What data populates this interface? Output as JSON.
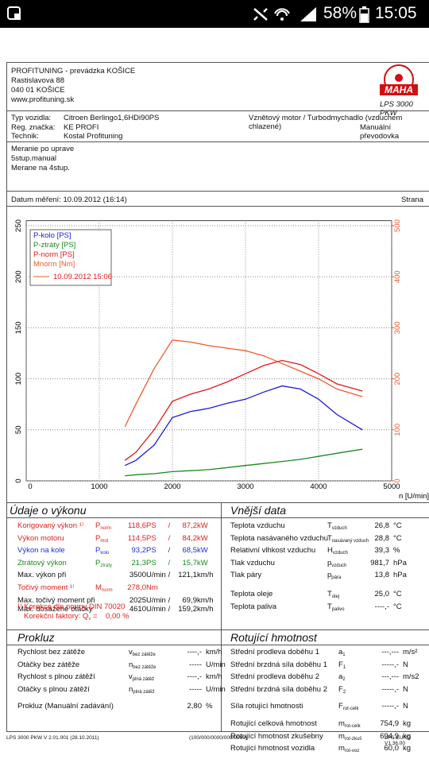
{
  "status_bar": {
    "battery": "58%",
    "time": "15:05"
  },
  "header": {
    "company": [
      "PROFITUNING - prevádzka KOŠICE",
      "Rastislavova 88",
      "040 01 KOŠICE",
      "www.profituning.sk"
    ],
    "logo": "MAHA",
    "product": "LPS 3000 PKW"
  },
  "vehicle": {
    "rows": [
      [
        "Typ vozidla:",
        "Citroen Berlingo1,6HDi90PS"
      ],
      [
        "Reg. značka:",
        "KE PROFI"
      ],
      [
        "Technik:",
        "Kostal Profituning"
      ]
    ],
    "engine": "Vznětový motor / Turbodmychadlo (vzduchem chlazené)",
    "gearbox": "Manuální převodovka"
  },
  "notes": [
    "Meranie po uprave",
    "5stup.manual",
    "Merane na 4stup."
  ],
  "measurement": {
    "date": "Datum měření: 10.09.2012 (16:14)",
    "page": "Strana"
  },
  "chart_data": {
    "type": "line",
    "x": [
      1350,
      1500,
      1750,
      2000,
      2250,
      2500,
      2750,
      3000,
      3250,
      3500,
      3750,
      4000,
      4250,
      4600
    ],
    "series": [
      {
        "name": "P-kolo [PS]",
        "color": "#1a1ad8",
        "values": [
          15,
          20,
          35,
          62,
          68,
          71,
          76,
          80,
          87,
          93,
          90,
          80,
          65,
          50
        ]
      },
      {
        "name": "P-ztráty [PS]",
        "color": "#1a8a1a",
        "values": [
          5,
          6,
          7,
          9,
          10,
          11,
          13,
          15,
          17,
          19,
          21,
          24,
          27,
          31
        ]
      },
      {
        "name": "P-norm [PS]",
        "color": "#e01818",
        "values": [
          20,
          28,
          50,
          78,
          85,
          90,
          97,
          105,
          113,
          118,
          114,
          105,
          95,
          88
        ]
      },
      {
        "name": "Mnorm [Nm]",
        "color": "#f05a28",
        "axis": "y2",
        "values": [
          106,
          150,
          220,
          276,
          272,
          265,
          260,
          255,
          245,
          230,
          215,
          200,
          180,
          165
        ]
      }
    ],
    "legend_note": "10.09.2012 15:06",
    "xlabel": "n [U/min]",
    "xlim": [
      0,
      5000
    ],
    "xticks": [
      0,
      1000,
      2000,
      3000,
      4000,
      5000
    ],
    "ylim": [
      0,
      255
    ],
    "yticks": [
      0,
      50,
      100,
      150,
      200,
      250
    ],
    "y2lim": [
      0,
      510
    ],
    "y2ticks": [
      0,
      100,
      200,
      300,
      400,
      500
    ],
    "grid": true
  },
  "performance": {
    "title": "Údaje o výkonu",
    "rows": [
      [
        "Korigovaný výkon ¹⁾",
        [
          "P",
          "norm"
        ],
        "118,6",
        "PS",
        "/",
        "87,2",
        "kW"
      ],
      [
        "Výkon motoru",
        [
          "P",
          "mot"
        ],
        "114,5",
        "PS",
        "/",
        "84,2",
        "kW"
      ],
      [
        "Výkon na kole",
        [
          "P",
          "kolo"
        ],
        "93,2",
        "PS",
        "/",
        "68,5",
        "kW"
      ],
      [
        "Ztrátový výkon",
        [
          "P",
          "ztráty"
        ],
        "21,3",
        "PS",
        "/",
        "15,7",
        "kW"
      ],
      [
        "Max. výkon při",
        null,
        "3500",
        "U/min",
        "/",
        "121,1",
        "km/h"
      ],
      [
        "Točivý moment ¹⁾",
        [
          "M",
          "norm"
        ],
        "278,0",
        "Nm"
      ],
      [
        "Max. točivý moment při",
        null,
        "2025",
        "U/min",
        "/",
        "69,9",
        "km/h"
      ],
      [
        "Max. dosažené otáčky",
        null,
        "4610",
        "U/min",
        "/",
        "159,2",
        "km/h"
      ]
    ],
    "row_colors": [
      "#e0201a",
      "#e0201a",
      "#1f2fd8",
      "#1a8a1a",
      null,
      "#e0201a",
      null,
      null
    ],
    "note": "¹⁾ Korekce dle normy DIN 70020",
    "factors": [
      "Korekční faktory: Q",
      "v",
      " =    0,00 %"
    ]
  },
  "external": {
    "title": "Vnější data",
    "rows": [
      [
        "Teplota vzduchu",
        [
          "T",
          "vzduch"
        ],
        "26,8",
        "°C"
      ],
      [
        "Teplota nasávaného vzduchu",
        [
          "T",
          "nasávaný vzduch"
        ],
        "28,8",
        "°C"
      ],
      [
        "Relativní vlhkost vzduchu",
        [
          "H",
          "vzduch"
        ],
        "39,3",
        "%"
      ],
      [
        "Tlak vzduchu",
        [
          "p",
          "vzduch"
        ],
        "981,7",
        "hPa"
      ],
      [
        "Tlak páry",
        [
          "p",
          "pára"
        ],
        "13,8",
        "hPa"
      ],
      [
        "Teplota oleje",
        [
          "T",
          "olej"
        ],
        "25,0",
        "°C"
      ],
      [
        "Teplota paliva",
        [
          "T",
          "palivo"
        ],
        "----,-",
        "°C"
      ]
    ]
  },
  "slip": {
    "title": "Prokluz",
    "rows": [
      [
        "Rychlost bez zátěže",
        [
          "v",
          "bez zátěže"
        ],
        "----,-",
        "km/h"
      ],
      [
        "Otáčky bez zátěže",
        [
          "n",
          "bez zátěže"
        ],
        "-----",
        "U/min"
      ],
      [
        "Rychlost s plnou zátěží",
        [
          "v",
          "plná zátěž"
        ],
        "----,-",
        "km/h"
      ],
      [
        "Otáčky s plnou zátěží",
        [
          "n",
          "plná zátěž"
        ],
        "-----",
        "U/min"
      ],
      [
        "Prokluz (Manuální zadávání)",
        null,
        "2,80",
        "%"
      ]
    ]
  },
  "rotating": {
    "title": "Rotující hmotnost",
    "rows": [
      [
        "Střední prodleva doběhu 1",
        [
          "a",
          "1"
        ],
        "---,---",
        "m/s²"
      ],
      [
        "Střední brzdná síla doběhu 1",
        [
          "F",
          "1"
        ],
        "-----,-",
        "N"
      ],
      [
        "Střední prodleva doběhu 2",
        [
          "a",
          "2"
        ],
        "---,---",
        "m/s2"
      ],
      [
        "Střední brzdná síla doběhu 2",
        [
          "F",
          "2"
        ],
        "-----,-",
        "N"
      ],
      [
        "Síla rotující hmotnosti",
        [
          "F",
          "rot-celk"
        ],
        "-----,-",
        "N"
      ],
      [
        "Rotující celková hmotnost",
        [
          "m",
          "rot-celk"
        ],
        "754,9",
        "kg"
      ],
      [
        "Rotující hmotnost zkušebny",
        [
          "m",
          "rot-zkuš"
        ],
        "694,9",
        "kg"
      ],
      [
        "Rotující hmotnost vozidla",
        [
          "m",
          "rot-voz"
        ],
        "60,0",
        "kg"
      ]
    ]
  },
  "footer": [
    "LPS 3000 PKW V 2.01.001 (28.10.2011)",
    "(100/000/0000/000/0000)",
    "LPS-EURO V1.36.00"
  ]
}
